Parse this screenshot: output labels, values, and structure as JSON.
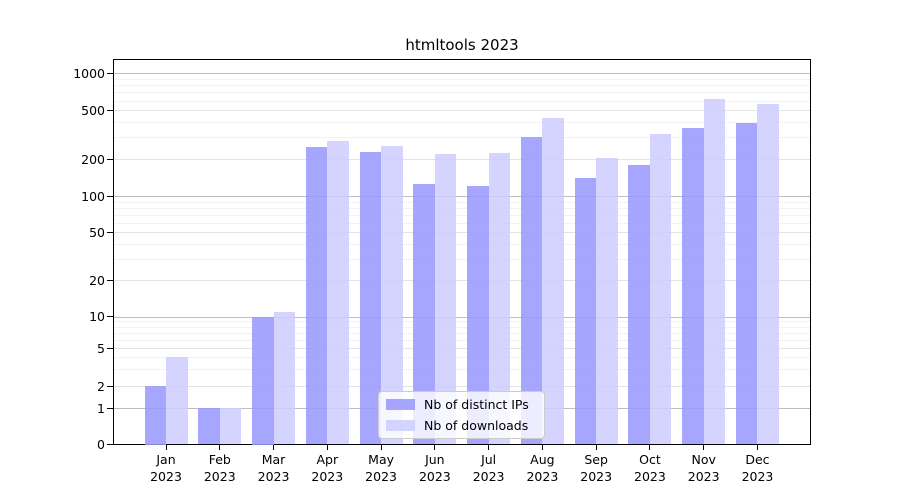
{
  "title": "htmltools 2023",
  "chart_data": {
    "type": "bar",
    "title": "htmltools 2023",
    "x_months": [
      "Jan",
      "Feb",
      "Mar",
      "Apr",
      "May",
      "Jun",
      "Jul",
      "Aug",
      "Sep",
      "Oct",
      "Nov",
      "Dec"
    ],
    "x_year": "2023",
    "categories": [
      "Jan 2023",
      "Feb 2023",
      "Mar 2023",
      "Apr 2023",
      "May 2023",
      "Jun 2023",
      "Jul 2023",
      "Aug 2023",
      "Sep 2023",
      "Oct 2023",
      "Nov 2023",
      "Dec 2023"
    ],
    "series": [
      {
        "name": "Nb of distinct IPs",
        "color": "#9999ff",
        "alpha": 0.87,
        "values": [
          2,
          1,
          10,
          250,
          230,
          125,
          120,
          300,
          140,
          180,
          360,
          390
        ]
      },
      {
        "name": "Nb of downloads",
        "color": "#ccccff",
        "alpha": 0.85,
        "values": [
          4,
          1,
          11,
          280,
          255,
          220,
          225,
          435,
          205,
          320,
          620,
          560
        ]
      }
    ],
    "yscale": "log above 1, linear 0-1",
    "yticks": [
      0,
      1,
      2,
      5,
      10,
      20,
      50,
      100,
      200,
      500,
      1000
    ],
    "yticks_minor": [
      3,
      4,
      6,
      7,
      8,
      9,
      30,
      40,
      60,
      70,
      80,
      90,
      300,
      400,
      600,
      700,
      800,
      900
    ],
    "ylim": [
      0,
      1300
    ],
    "xlabel": "",
    "ylabel": "",
    "grid": true,
    "legend_position": "bottom-center"
  },
  "colors": {
    "grid_major": "#bdbdbd",
    "grid_mid": "#e3e3e3",
    "grid_minor": "#f2f2f2",
    "axis": "#000000",
    "text": "#000000",
    "legend_border": "#cccccc",
    "legend_bg": "rgba(255,255,255,0.8)"
  }
}
